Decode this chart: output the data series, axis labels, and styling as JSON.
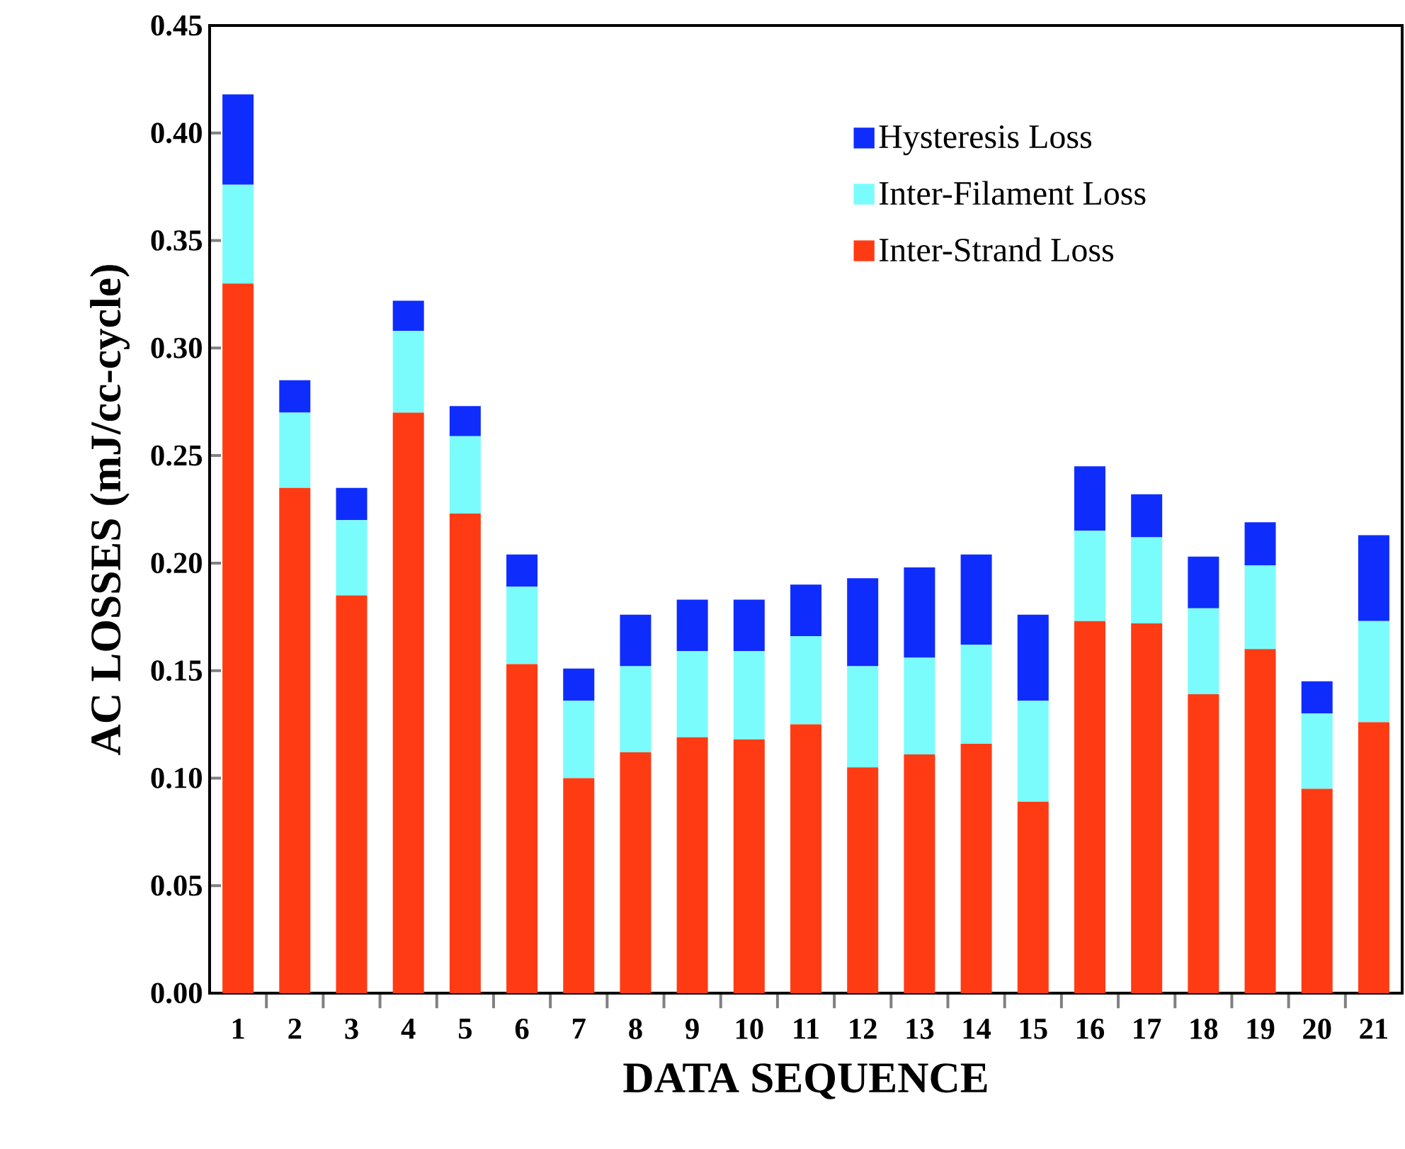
{
  "chart_data": {
    "type": "bar",
    "stacked": true,
    "xlabel": "DATA SEQUENCE",
    "ylabel": "AC LOSSES  (mJ/cc-cycle)",
    "categories": [
      "1",
      "2",
      "3",
      "4",
      "5",
      "6",
      "7",
      "8",
      "9",
      "10",
      "11",
      "12",
      "13",
      "14",
      "15",
      "16",
      "17",
      "18",
      "19",
      "20",
      "21"
    ],
    "series": [
      {
        "name": "Inter-Strand Loss",
        "color": "#ff3b14",
        "values": [
          0.33,
          0.235,
          0.185,
          0.27,
          0.223,
          0.153,
          0.1,
          0.112,
          0.119,
          0.118,
          0.125,
          0.105,
          0.111,
          0.116,
          0.089,
          0.173,
          0.172,
          0.139,
          0.16,
          0.095,
          0.126
        ]
      },
      {
        "name": "Inter-Filament Loss",
        "color": "#7bfcfc",
        "values": [
          0.046,
          0.035,
          0.035,
          0.038,
          0.036,
          0.036,
          0.036,
          0.04,
          0.04,
          0.041,
          0.041,
          0.047,
          0.045,
          0.046,
          0.047,
          0.042,
          0.04,
          0.04,
          0.039,
          0.035,
          0.047
        ]
      },
      {
        "name": "Hysteresis Loss",
        "color": "#0e2dfc",
        "values": [
          0.042,
          0.015,
          0.015,
          0.014,
          0.014,
          0.015,
          0.015,
          0.024,
          0.024,
          0.024,
          0.024,
          0.041,
          0.042,
          0.042,
          0.04,
          0.03,
          0.02,
          0.024,
          0.02,
          0.015,
          0.04
        ]
      }
    ],
    "ylim": [
      0,
      0.45
    ],
    "yticks": [
      {
        "value": 0,
        "label": "0.00"
      },
      {
        "value": 0.05,
        "label": "0.05"
      },
      {
        "value": 0.1,
        "label": "0.10"
      },
      {
        "value": 0.15,
        "label": "0.15"
      },
      {
        "value": 0.2,
        "label": "0.20"
      },
      {
        "value": 0.25,
        "label": "0.25"
      },
      {
        "value": 0.3,
        "label": "0.30"
      },
      {
        "value": 0.35,
        "label": "0.35"
      },
      {
        "value": 0.4,
        "label": "0.40"
      },
      {
        "value": 0.45,
        "label": "0.45"
      }
    ],
    "legend": "top right"
  }
}
